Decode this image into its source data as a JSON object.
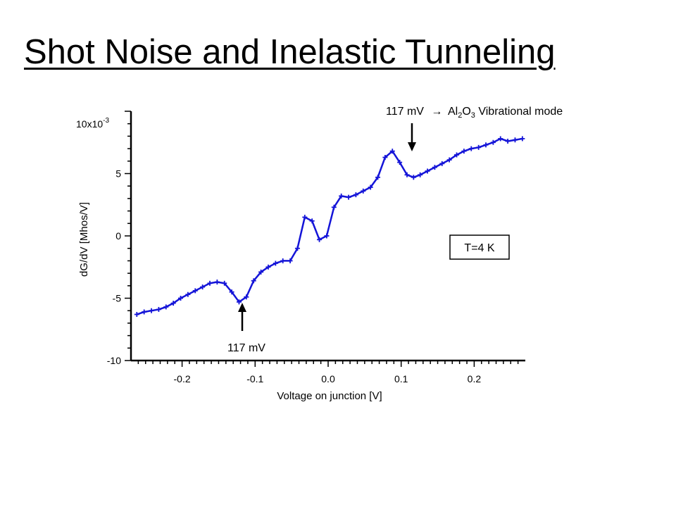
{
  "title": "Shot Noise and Inelastic Tunneling",
  "chart_data": {
    "type": "line",
    "xlabel": "Voltage on junction [V]",
    "ylabel": "dG/dV [Mhos/V]",
    "y_multiplier_label": "10x10",
    "y_multiplier_exponent": "-3",
    "xlim": [
      -0.27,
      0.27
    ],
    "ylim": [
      -10,
      10
    ],
    "xticks": [
      -0.2,
      -0.1,
      0.0,
      0.1,
      0.2
    ],
    "xtick_labels": [
      "-0.2",
      "-0.1",
      "0.0",
      "0.1",
      "0.2"
    ],
    "yticks": [
      -10,
      -5,
      0,
      5
    ],
    "ytick_labels": [
      "-10",
      "-5",
      "0",
      "5"
    ],
    "grid": false,
    "line_color": "#1414d8",
    "series": [
      {
        "x": [
          -0.262,
          -0.252,
          -0.242,
          -0.232,
          -0.222,
          -0.212,
          -0.202,
          -0.192,
          -0.182,
          -0.172,
          -0.162,
          -0.152,
          -0.142,
          -0.132,
          -0.122,
          -0.112,
          -0.102,
          -0.092,
          -0.082,
          -0.072,
          -0.062,
          -0.052,
          -0.042,
          -0.032,
          -0.022,
          -0.012,
          -0.002,
          0.008,
          0.018,
          0.028,
          0.038,
          0.048,
          0.058,
          0.068,
          0.078,
          0.088,
          0.098,
          0.108,
          0.117,
          0.126,
          0.136,
          0.146,
          0.156,
          0.166,
          0.176,
          0.186,
          0.196,
          0.206,
          0.216,
          0.226,
          0.236,
          0.246,
          0.256,
          0.266
        ],
        "y": [
          -6.3,
          -6.1,
          -6.0,
          -5.9,
          -5.7,
          -5.4,
          -5.0,
          -4.7,
          -4.4,
          -4.1,
          -3.8,
          -3.7,
          -3.8,
          -4.5,
          -5.3,
          -4.9,
          -3.6,
          -2.9,
          -2.5,
          -2.2,
          -2.0,
          -2.0,
          -1.0,
          1.5,
          1.2,
          -0.3,
          0.0,
          2.3,
          3.2,
          3.1,
          3.3,
          3.6,
          3.9,
          4.7,
          6.3,
          6.8,
          5.9,
          4.9,
          4.7,
          4.9,
          5.2,
          5.5,
          5.8,
          6.1,
          6.5,
          6.8,
          7.0,
          7.1,
          7.3,
          7.5,
          7.8,
          7.6,
          7.7,
          7.8
        ]
      }
    ],
    "annotations": {
      "dip_label": "117 mV",
      "peak_prefix": "117 mV",
      "peak_arrow": "→",
      "peak_al": "Al",
      "peak_sub2": "2",
      "peak_o": "O",
      "peak_sub3": "3",
      "peak_suffix": " Vibrational mode",
      "temperature": "T=4 K"
    }
  }
}
